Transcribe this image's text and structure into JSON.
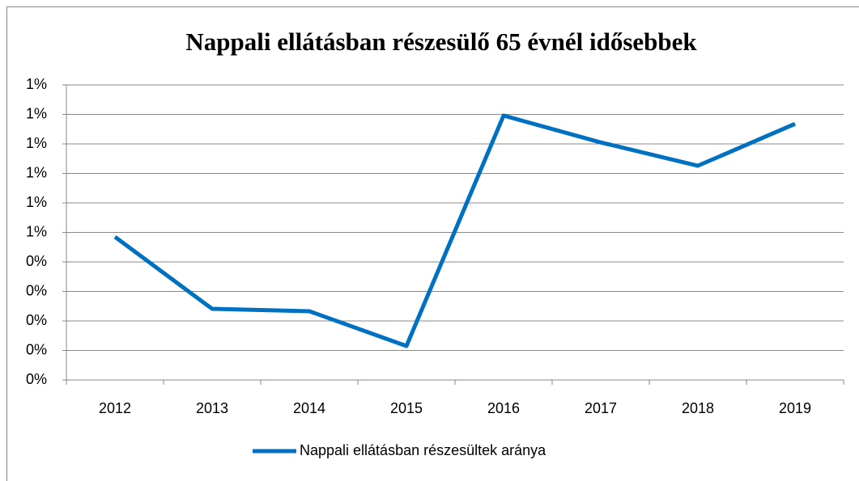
{
  "chart_data": {
    "type": "line",
    "title": "Nappali ellátásban részesülő 65 évnél idősebbek",
    "categories": [
      "2012",
      "2013",
      "2014",
      "2015",
      "2016",
      "2017",
      "2018",
      "2019"
    ],
    "series": [
      {
        "name": "Nappali ellátásban részesültek aránya",
        "color": "#0070c0",
        "values": [
          0.485,
          0.241,
          0.233,
          0.115,
          0.896,
          0.805,
          0.726,
          0.868
        ]
      }
    ],
    "ylim": [
      0,
      1.0
    ],
    "yticks": [
      {
        "value": 0,
        "label": "0%"
      },
      {
        "value": 0.1,
        "label": "0%"
      },
      {
        "value": 0.2,
        "label": "0%"
      },
      {
        "value": 0.3,
        "label": "0%"
      },
      {
        "value": 0.4,
        "label": "0%"
      },
      {
        "value": 0.5,
        "label": "1%"
      },
      {
        "value": 0.6,
        "label": "1%"
      },
      {
        "value": 0.7,
        "label": "1%"
      },
      {
        "value": 0.8,
        "label": "1%"
      },
      {
        "value": 0.9,
        "label": "1%"
      },
      {
        "value": 1.0,
        "label": "1%"
      }
    ],
    "grid": true,
    "legend": "bottom"
  }
}
